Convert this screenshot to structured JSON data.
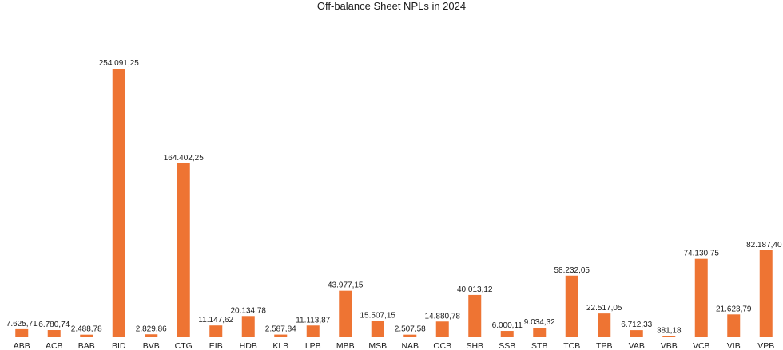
{
  "chart_data": {
    "type": "bar",
    "title": "Off-balance Sheet NPLs in 2024",
    "xlabel": "",
    "ylabel": "",
    "ylim": [
      0,
      254091.25
    ],
    "grid": false,
    "legend": "none",
    "bar_color": "#ee7433",
    "categories": [
      "ABB",
      "ACB",
      "BAB",
      "BID",
      "BVB",
      "CTG",
      "EIB",
      "HDB",
      "KLB",
      "LPB",
      "MBB",
      "MSB",
      "NAB",
      "OCB",
      "SHB",
      "SSB",
      "STB",
      "TCB",
      "TPB",
      "VAB",
      "VBB",
      "VCB",
      "VIB",
      "VPB"
    ],
    "values": [
      7625.71,
      6780.74,
      2488.78,
      254091.25,
      2829.86,
      164402.25,
      11147.62,
      20134.78,
      2587.84,
      11113.87,
      43977.15,
      15507.15,
      2507.58,
      14880.78,
      40013.12,
      6000.11,
      9034.32,
      58232.05,
      22517.05,
      6712.33,
      381.18,
      74130.75,
      21623.79,
      82187.4
    ],
    "value_labels": [
      "7.625,71",
      "6.780,74",
      "2.488,78",
      "254.091,25",
      "2.829,86",
      "164.402,25",
      "11.147,62",
      "20.134,78",
      "2.587,84",
      "11.113,87",
      "43.977,15",
      "15.507,15",
      "2.507,58",
      "14.880,78",
      "40.013,12",
      "6.000,11",
      "9.034,32",
      "58.232,05",
      "22.517,05",
      "6.712,33",
      "381,18",
      "74.130,75",
      "21.623,79",
      "82.187,40"
    ]
  }
}
